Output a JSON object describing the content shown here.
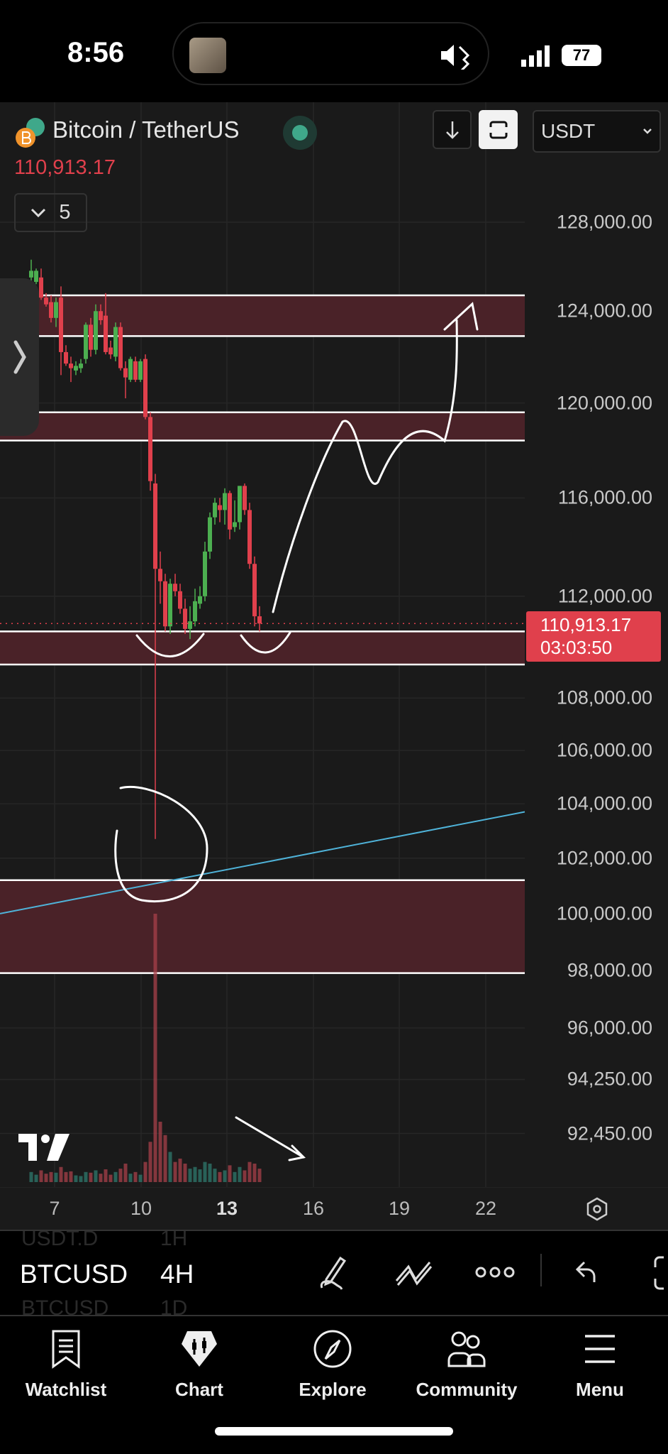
{
  "status_bar": {
    "time": "8:56",
    "battery": "77"
  },
  "header": {
    "title": "Bitcoin / TetherUS",
    "last_price": "110,913.17",
    "indicator_count": "5",
    "currency": "USDT",
    "market_status_color": "#3fa88a"
  },
  "price_axis": [
    "128,000.00",
    "124,000.00",
    "120,000.00",
    "116,000.00",
    "112,000.00",
    "108,000.00",
    "106,000.00",
    "104,000.00",
    "102,000.00",
    "100,000.00",
    "98,000.00",
    "96,000.00",
    "94,250.00",
    "92,450.00"
  ],
  "price_axis_values": [
    128000,
    124000,
    120000,
    116000,
    112000,
    108000,
    106000,
    104000,
    102000,
    100000,
    98000,
    96000,
    94250,
    92450
  ],
  "current_price_label": {
    "price": "110,913.17",
    "countdown": "03:03:50",
    "color": "#e0404c"
  },
  "date_axis": [
    "7",
    "10",
    "13",
    "16",
    "19",
    "22"
  ],
  "colors": {
    "up": "#4caf50",
    "down": "#e0404c",
    "zone": "#4a2228",
    "trendline": "#4fb3d9",
    "background": "#1a1a1a"
  },
  "chart_data": {
    "type": "candlestick",
    "symbol": "BTCUSDT",
    "timeframe": "4H",
    "scale": "log",
    "zones": [
      [
        122900,
        124700
      ],
      [
        118400,
        119600
      ],
      [
        109300,
        110600
      ],
      [
        97900,
        101200
      ]
    ],
    "trendline": [
      100000,
      103700
    ],
    "candles": [
      [
        125500,
        126300,
        125300,
        125800
      ],
      [
        125300,
        125900,
        125200,
        125800
      ],
      [
        125500,
        125900,
        124500,
        124600
      ],
      [
        124600,
        124800,
        124200,
        124300
      ],
      [
        124400,
        124700,
        123500,
        123700
      ],
      [
        123700,
        124600,
        123300,
        124400
      ],
      [
        124600,
        125100,
        121200,
        122200
      ],
      [
        122200,
        122500,
        121600,
        121700
      ],
      [
        121700,
        122000,
        120900,
        121500
      ],
      [
        121400,
        121800,
        121200,
        121600
      ],
      [
        121500,
        121900,
        121300,
        121700
      ],
      [
        121900,
        123500,
        121700,
        123400
      ],
      [
        123400,
        123700,
        122000,
        122300
      ],
      [
        122300,
        124300,
        122100,
        124000
      ],
      [
        124000,
        124300,
        123400,
        123600
      ],
      [
        123800,
        124800,
        122100,
        122200
      ],
      [
        122400,
        122700,
        121900,
        122100
      ],
      [
        122000,
        123500,
        121800,
        123300
      ],
      [
        123300,
        123500,
        121400,
        121500
      ],
      [
        121500,
        121800,
        120200,
        121100
      ],
      [
        121000,
        122000,
        120900,
        121900
      ],
      [
        121800,
        122000,
        120900,
        121000
      ],
      [
        121000,
        121900,
        120900,
        121800
      ],
      [
        121900,
        122100,
        119300,
        119400
      ],
      [
        119400,
        119600,
        116300,
        116700
      ],
      [
        116600,
        117000,
        102700,
        113100
      ],
      [
        113100,
        113800,
        111700,
        112600
      ],
      [
        112600,
        112900,
        110600,
        110800
      ],
      [
        110800,
        112700,
        110500,
        112500
      ],
      [
        112500,
        112900,
        112000,
        112200
      ],
      [
        112200,
        112500,
        111300,
        111500
      ],
      [
        111500,
        111900,
        110500,
        110700
      ],
      [
        110700,
        111600,
        110300,
        111000
      ],
      [
        111000,
        112300,
        110800,
        111800
      ],
      [
        111700,
        112400,
        111500,
        112000
      ],
      [
        112000,
        114200,
        111800,
        113800
      ],
      [
        113800,
        115400,
        113500,
        115200
      ],
      [
        115200,
        116000,
        114900,
        115800
      ],
      [
        115700,
        116000,
        115000,
        115500
      ],
      [
        115500,
        116400,
        114900,
        116200
      ],
      [
        116200,
        116300,
        114300,
        114700
      ],
      [
        114800,
        115900,
        114600,
        115000
      ],
      [
        115000,
        116500,
        114700,
        116500
      ],
      [
        116500,
        116600,
        115300,
        115500
      ],
      [
        115500,
        115800,
        113100,
        113300
      ],
      [
        113300,
        113600,
        110800,
        111200
      ],
      [
        111200,
        111600,
        110600,
        110913
      ]
    ],
    "volumes": [
      30,
      22,
      35,
      25,
      30,
      28,
      45,
      30,
      32,
      20,
      18,
      30,
      28,
      35,
      25,
      38,
      22,
      30,
      40,
      55,
      25,
      30,
      22,
      60,
      120,
      800,
      180,
      140,
      90,
      60,
      70,
      55,
      40,
      45,
      38,
      60,
      55,
      40,
      30,
      35,
      50,
      30,
      45,
      35,
      60,
      55,
      40
    ]
  },
  "toolbar": {
    "prev_symbol": "USDT.D",
    "prev_tf": "1H",
    "symbol": "BTCUSD",
    "timeframe": "4H",
    "next_symbol": "BTCUSD",
    "next_tf": "1D"
  },
  "nav": [
    {
      "label": "Watchlist"
    },
    {
      "label": "Chart"
    },
    {
      "label": "Explore"
    },
    {
      "label": "Community"
    },
    {
      "label": "Menu"
    }
  ]
}
